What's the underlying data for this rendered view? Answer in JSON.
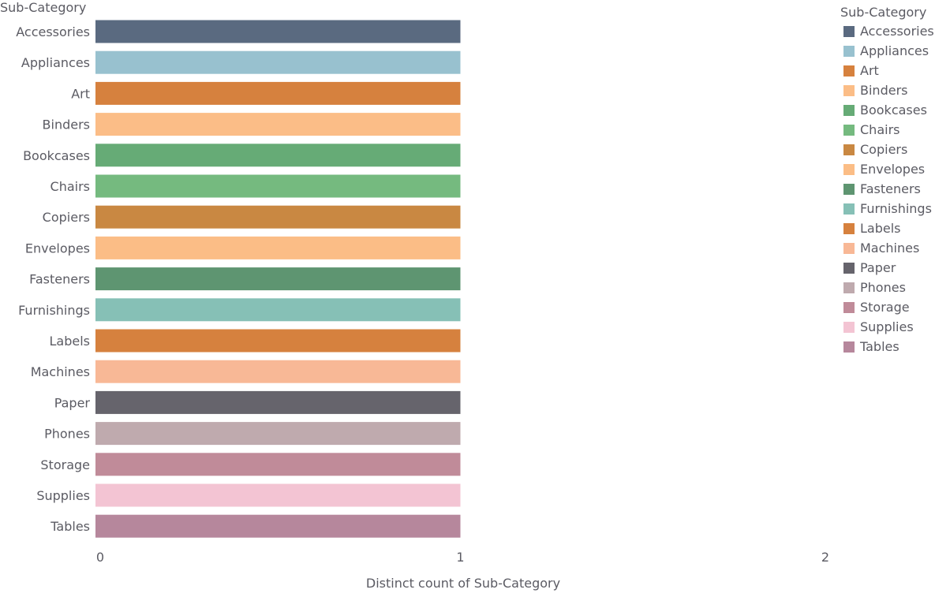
{
  "chart_data": {
    "type": "bar",
    "orientation": "horizontal",
    "row_header": "Sub-Category",
    "xlabel": "Distinct count of Sub-Category",
    "xlim": [
      0,
      2
    ],
    "x_ticks": [
      "0",
      "1",
      "2"
    ],
    "grid": false,
    "legend": {
      "title": "Sub-Category",
      "position": "right"
    },
    "categories": [
      "Accessories",
      "Appliances",
      "Art",
      "Binders",
      "Bookcases",
      "Chairs",
      "Copiers",
      "Envelopes",
      "Fasteners",
      "Furnishings",
      "Labels",
      "Machines",
      "Paper",
      "Phones",
      "Storage",
      "Supplies",
      "Tables"
    ],
    "values": [
      1,
      1,
      1,
      1,
      1,
      1,
      1,
      1,
      1,
      1,
      1,
      1,
      1,
      1,
      1,
      1,
      1
    ],
    "colors": [
      "#5a6a80",
      "#98c1cf",
      "#d6813e",
      "#fbbd87",
      "#66ab76",
      "#75ba7f",
      "#c98842",
      "#fbbd86",
      "#5e9571",
      "#86c0b6",
      "#d6813e",
      "#f8b896",
      "#66646c",
      "#bfaaae",
      "#c08b99",
      "#f3c4d3",
      "#b6879c"
    ]
  }
}
